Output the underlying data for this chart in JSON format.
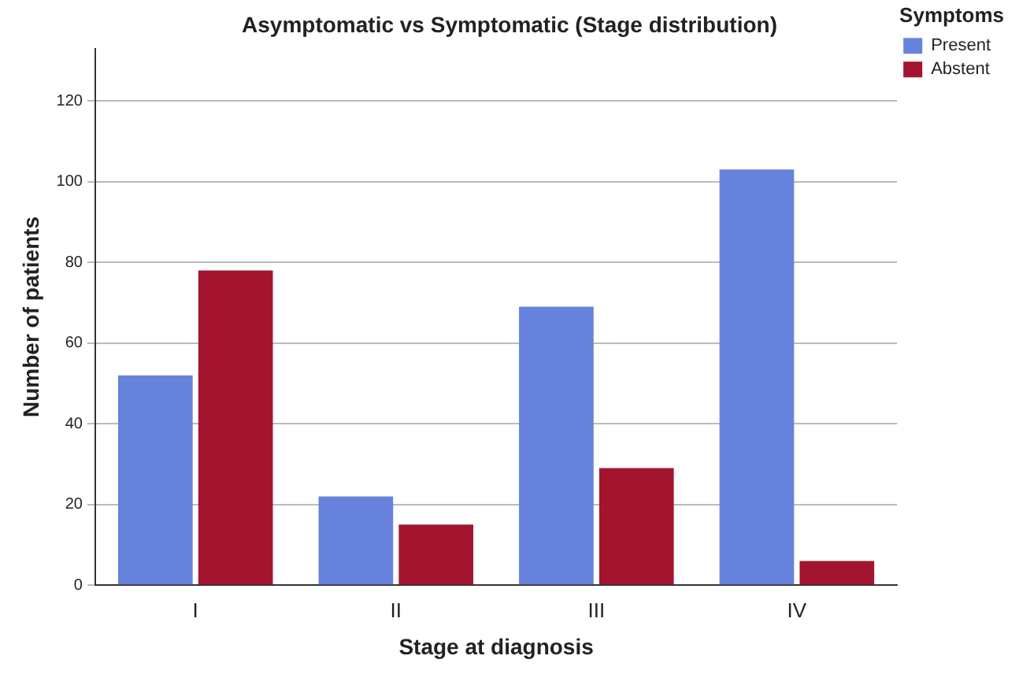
{
  "chart_data": {
    "type": "bar",
    "title": "Asymptomatic vs Symptomatic (Stage distribution)",
    "xlabel": "Stage at diagnosis",
    "ylabel": "Number of patients",
    "legend_title": "Symptoms",
    "categories": [
      "I",
      "II",
      "III",
      "IV"
    ],
    "series": [
      {
        "name": "Present",
        "color": "#6682dc",
        "values": [
          52,
          22,
          69,
          103
        ]
      },
      {
        "name": "Abstent",
        "color": "#a3142e",
        "values": [
          78,
          15,
          29,
          6
        ]
      }
    ],
    "ylim": [
      0,
      133
    ],
    "yticks": [
      0,
      20,
      40,
      60,
      80,
      100,
      120
    ],
    "grid": "y",
    "legend": "top right"
  }
}
